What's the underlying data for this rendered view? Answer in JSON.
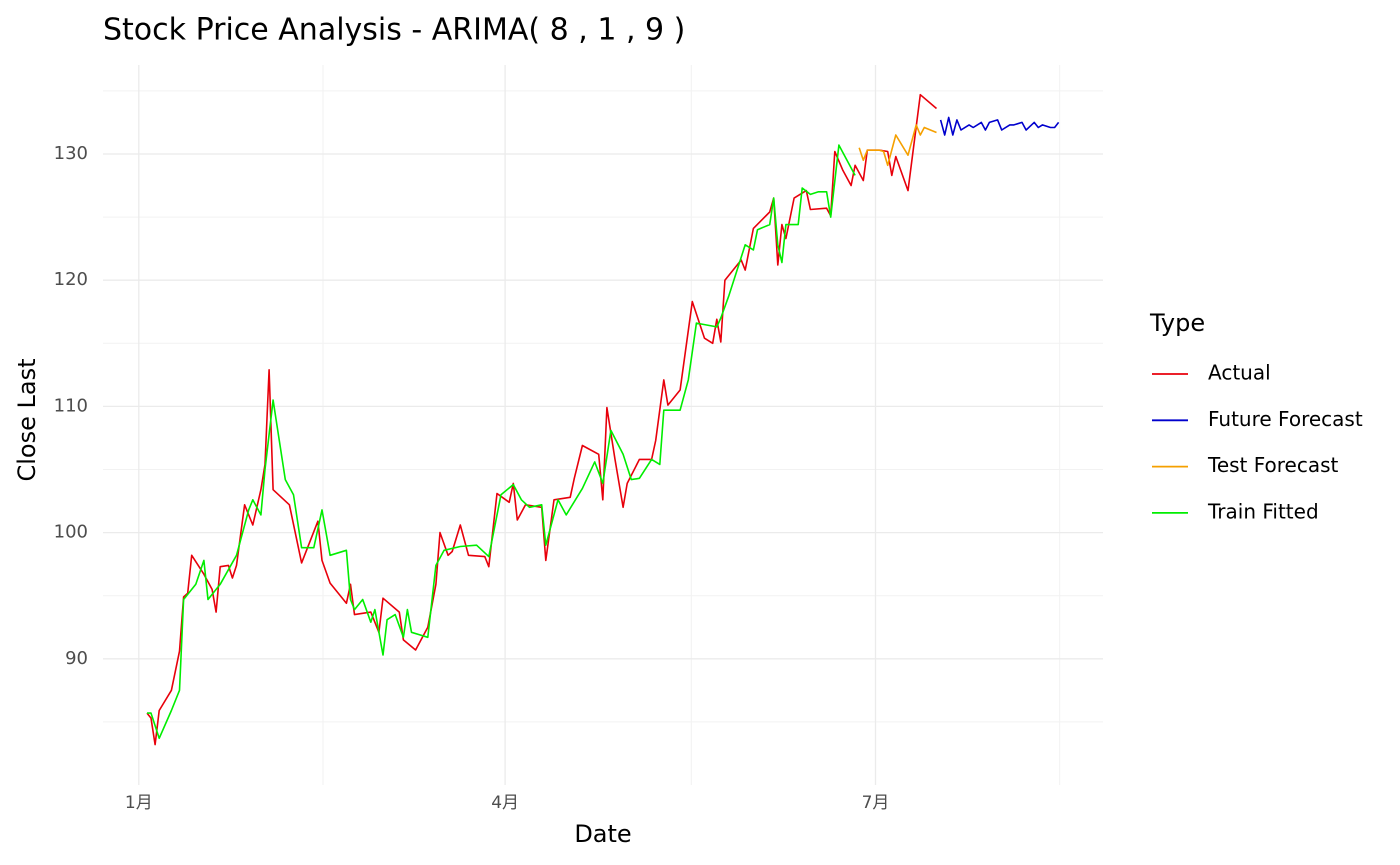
{
  "chart_data": {
    "type": "line",
    "title": "Stock Price Analysis - ARIMA( 8 , 1 , 9 )",
    "x_label": "Date",
    "y_label": "Close Last",
    "legend_title": "Type",
    "legend": "right",
    "grid": true,
    "xlim": [
      -8.8,
      236.9
    ],
    "ylim": [
      80,
      137.05
    ],
    "xticks": [
      {
        "value": 0,
        "label": "1月"
      },
      {
        "value": 90,
        "label": "4月"
      },
      {
        "value": 181,
        "label": "7月"
      }
    ],
    "yticks": [
      90,
      100,
      110,
      120,
      130
    ],
    "series": [
      {
        "name": "Actual",
        "color": "#e8000b",
        "x": [
          2,
          3,
          4,
          5,
          8,
          10,
          11,
          12,
          13,
          16,
          18,
          19,
          20,
          22,
          23,
          24,
          26,
          28,
          30,
          31,
          32,
          33,
          37,
          40,
          44,
          45,
          47,
          51,
          52,
          53,
          57,
          59,
          60,
          64,
          65,
          68,
          71,
          73,
          74,
          76,
          77,
          79,
          81,
          85,
          86,
          88,
          91,
          92,
          93,
          95,
          99,
          100,
          102,
          106,
          107,
          109,
          113,
          114,
          115,
          117,
          119,
          120,
          123,
          126,
          127,
          129,
          130,
          133,
          136,
          139,
          141,
          142,
          143,
          144,
          148,
          149,
          151,
          155,
          156,
          157,
          158,
          159,
          161,
          164,
          165,
          169,
          170,
          171,
          173,
          175,
          176,
          178,
          179,
          182,
          184,
          185,
          186,
          189,
          192,
          196
        ],
        "values": [
          85.7,
          85.3,
          83.2,
          85.9,
          87.5,
          90.6,
          94.9,
          95.2,
          98.2,
          96.7,
          95.5,
          93.7,
          97.3,
          97.4,
          96.4,
          97.4,
          102.2,
          100.6,
          103.4,
          105.4,
          112.9,
          103.4,
          102.2,
          97.6,
          100.9,
          97.8,
          96.0,
          94.4,
          95.9,
          93.5,
          93.7,
          92.1,
          94.8,
          93.7,
          91.5,
          90.7,
          92.5,
          95.9,
          100.0,
          98.2,
          98.5,
          100.6,
          98.2,
          98.1,
          97.3,
          103.1,
          102.4,
          103.9,
          101.0,
          102.2,
          102.0,
          97.8,
          102.6,
          102.8,
          104.3,
          106.9,
          106.2,
          102.6,
          109.9,
          105.8,
          102.0,
          103.9,
          105.8,
          105.8,
          107.3,
          112.1,
          110.1,
          111.3,
          118.3,
          115.4,
          115.0,
          116.9,
          115.1,
          120.0,
          121.6,
          120.8,
          124.1,
          125.4,
          126.5,
          121.2,
          124.4,
          123.3,
          126.5,
          127.1,
          125.6,
          125.7,
          125.1,
          130.2,
          128.7,
          127.5,
          129.1,
          127.9,
          130.3,
          130.3,
          130.2,
          128.3,
          129.8,
          127.1,
          134.7,
          133.6
        ]
      },
      {
        "name": "Future Forecast",
        "color": "#0000cd",
        "x": [
          197,
          198,
          199,
          200,
          201,
          202,
          204,
          205,
          207,
          208,
          209,
          211,
          212,
          214,
          215,
          217,
          218,
          220,
          221,
          222,
          224,
          225,
          226
        ],
        "values": [
          132.7,
          131.5,
          132.9,
          131.5,
          132.7,
          131.9,
          132.3,
          132.1,
          132.5,
          131.9,
          132.5,
          132.7,
          131.9,
          132.3,
          132.3,
          132.5,
          131.9,
          132.5,
          132.1,
          132.3,
          132.1,
          132.1,
          132.5
        ]
      },
      {
        "name": "Test Forecast",
        "color": "#f5a000",
        "x": [
          177,
          178,
          179,
          182,
          183,
          184,
          186,
          189,
          191,
          192,
          193,
          196
        ],
        "values": [
          130.5,
          129.5,
          130.3,
          130.3,
          130.2,
          129.1,
          131.5,
          129.9,
          132.3,
          131.5,
          132.1,
          131.7
        ]
      },
      {
        "name": "Train Fitted",
        "color": "#00ee00",
        "x": [
          2,
          3,
          5,
          8,
          10,
          11,
          14,
          16,
          17,
          20,
          24,
          27,
          28,
          30,
          31,
          33,
          36,
          38,
          40,
          43,
          45,
          47,
          51,
          52,
          53,
          55,
          57,
          58,
          60,
          61,
          63,
          65,
          66,
          67,
          71,
          73,
          75,
          79,
          83,
          86,
          89,
          92,
          94,
          96,
          99,
          100,
          103,
          105,
          109,
          112,
          114,
          116,
          119,
          121,
          123,
          126,
          128,
          129,
          133,
          135,
          137,
          142,
          143,
          145,
          149,
          151,
          152,
          155,
          156,
          157,
          158,
          159,
          162,
          163,
          165,
          167,
          169,
          170,
          172,
          176
        ],
        "values": [
          85.7,
          85.7,
          83.7,
          85.9,
          87.5,
          94.7,
          95.9,
          97.8,
          94.7,
          95.9,
          98.2,
          101.8,
          102.6,
          101.4,
          105.0,
          110.5,
          104.2,
          103.0,
          98.8,
          98.8,
          101.8,
          98.2,
          98.6,
          94.7,
          93.9,
          94.7,
          92.9,
          93.9,
          90.3,
          93.1,
          93.5,
          91.7,
          93.9,
          92.1,
          91.7,
          97.4,
          98.6,
          98.9,
          99.0,
          98.1,
          103.0,
          103.8,
          102.6,
          102.0,
          102.2,
          99.0,
          102.6,
          101.4,
          103.5,
          105.6,
          103.9,
          108.1,
          106.2,
          104.2,
          104.3,
          105.8,
          105.4,
          109.7,
          109.7,
          112.1,
          116.6,
          116.3,
          117.0,
          118.8,
          122.8,
          122.4,
          124.0,
          124.4,
          126.5,
          122.8,
          121.4,
          124.4,
          124.4,
          127.3,
          126.8,
          127.0,
          127.0,
          125.0,
          130.7,
          128.3
        ]
      }
    ]
  }
}
